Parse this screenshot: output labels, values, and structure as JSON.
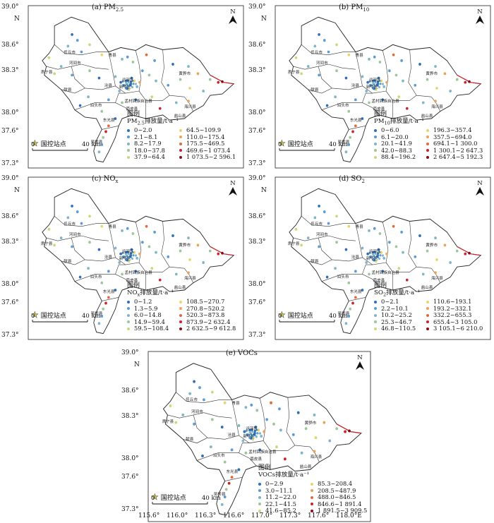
{
  "axes": {
    "lat_labels": [
      "39.0°",
      "38.6°",
      "38.3°",
      "38.0°",
      "37.6°",
      "37.3°"
    ],
    "lat_north": "N",
    "lon_labels": [
      "115.6°",
      "116.0°",
      "116.3°",
      "116.6°",
      "117.0°",
      "117.3°",
      "117.6°",
      "118.0°E"
    ]
  },
  "map_labels": {
    "north": "N",
    "station_label": "国控站点",
    "scale_zero": "0",
    "scale_end": "40 km",
    "legend_title": "图例",
    "counties": [
      "任丘市",
      "河间市",
      "肃宁县",
      "献县",
      "青县",
      "沧县",
      "运河区",
      "新华区",
      "黄骅市",
      "泊头市",
      "南皮县",
      "孟村回族自治县",
      "海兴县",
      "盐山县",
      "东光县",
      "吴桥县"
    ]
  },
  "colors": {
    "classes": [
      "#2e6fb7",
      "#5b9bd5",
      "#7fb5c8",
      "#9bc79a",
      "#c8d97a",
      "#e8d56a",
      "#e9a35a",
      "#e06a3a",
      "#c8232c",
      "#8b0a1a"
    ]
  },
  "panels": [
    {
      "title_main": "(a) PM",
      "title_sub": "2.5",
      "legend_head_main": "PM",
      "legend_head_sub": "2.5",
      "legend_head_rest": "排放量/t·a⁻¹",
      "classes": [
        "0~2.0",
        "2.1~8.1",
        "8.2~17.9",
        "18.0~37.8",
        "37.9~64.4",
        "64.5~109.9",
        "110.0~175.4",
        "175.5~469.5",
        "469.6~1 073.4",
        "1 073.5~2 596.1"
      ]
    },
    {
      "title_main": "(b) PM",
      "title_sub": "10",
      "legend_head_main": "PM",
      "legend_head_sub": "10",
      "legend_head_rest": "排放量/t·a⁻¹",
      "classes": [
        "0~6.0",
        "6.1~20.0",
        "20.1~41.9",
        "42.0~88.3",
        "88.4~196.2",
        "196.3~357.4",
        "357.5~694.0",
        "694.1~1 300.0",
        "1 300.1~2 647.3",
        "2 647.4~5 192.3"
      ]
    },
    {
      "title_main": "(c) NO",
      "title_sub": "x",
      "legend_head_main": "NO",
      "legend_head_sub": "x",
      "legend_head_rest": "排放量/t·a⁻¹",
      "classes": [
        "0~1.2",
        "1.3~5.9",
        "6.0~14.8",
        "14.9~59.4",
        "59.5~108.4",
        "108.5~270.7",
        "270.8~520.2",
        "520.3~873.8",
        "873.9~2 632.4",
        "2 632.5~9 612.8"
      ]
    },
    {
      "title_main": "(d) SO",
      "title_sub": "2",
      "legend_head_main": "SO",
      "legend_head_sub": "2",
      "legend_head_rest": "排放量/t·a⁻¹",
      "classes": [
        "0~2.1",
        "2.2~10.1",
        "10.2~25.2",
        "25.3~46.7",
        "46.8~110.5",
        "110.6~193.1",
        "193.2~332.1",
        "332.2~655.3",
        "655.4~3 105.0",
        "3 105.1~6 210.0"
      ]
    },
    {
      "title_main": "(e) VOCs",
      "title_sub": "",
      "legend_head_main": "VOCs",
      "legend_head_sub": "",
      "legend_head_rest": "排放量/t·a⁻¹",
      "classes": [
        "0~2.9",
        "3.0~11.1",
        "11.2~22.0",
        "22.1~41.5",
        "41.6~85.2",
        "85.3~208.4",
        "208.5~487.9",
        "488.0~846.5",
        "846.6~1 891.4",
        "1 891.5~3 909.5"
      ]
    }
  ]
}
